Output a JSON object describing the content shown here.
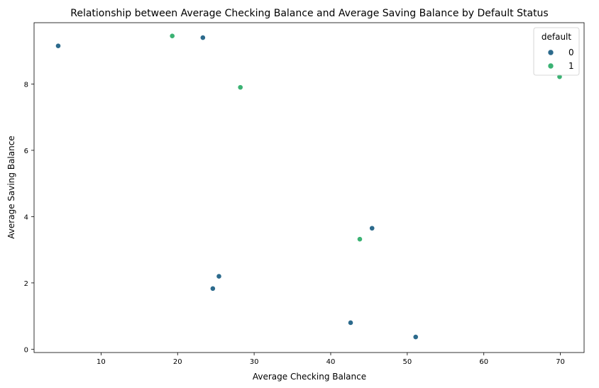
{
  "chart_data": {
    "type": "scatter",
    "title": "Relationship between Average Checking Balance and Average Saving Balance by Default Status",
    "xlabel": "Average Checking Balance",
    "ylabel": "Average Saving Balance",
    "xlim": [
      1.25,
      73.1
    ],
    "ylim": [
      -0.1,
      9.85
    ],
    "xticks": [
      10,
      20,
      30,
      40,
      50,
      60,
      70
    ],
    "yticks": [
      0,
      2,
      4,
      6,
      8
    ],
    "grid": false,
    "legend": {
      "title": "default",
      "placement": "top-right"
    },
    "series": [
      {
        "name": "0",
        "color": "#2c6a8c",
        "points": [
          {
            "x": 4.4,
            "y": 9.15
          },
          {
            "x": 23.3,
            "y": 9.4
          },
          {
            "x": 45.4,
            "y": 3.65
          },
          {
            "x": 25.4,
            "y": 2.2
          },
          {
            "x": 24.6,
            "y": 1.83
          },
          {
            "x": 42.6,
            "y": 0.8
          },
          {
            "x": 51.1,
            "y": 0.37
          }
        ]
      },
      {
        "name": "1",
        "color": "#3bb273",
        "points": [
          {
            "x": 19.3,
            "y": 9.45
          },
          {
            "x": 28.2,
            "y": 7.9
          },
          {
            "x": 69.9,
            "y": 8.22
          },
          {
            "x": 43.8,
            "y": 3.32
          }
        ]
      }
    ]
  }
}
